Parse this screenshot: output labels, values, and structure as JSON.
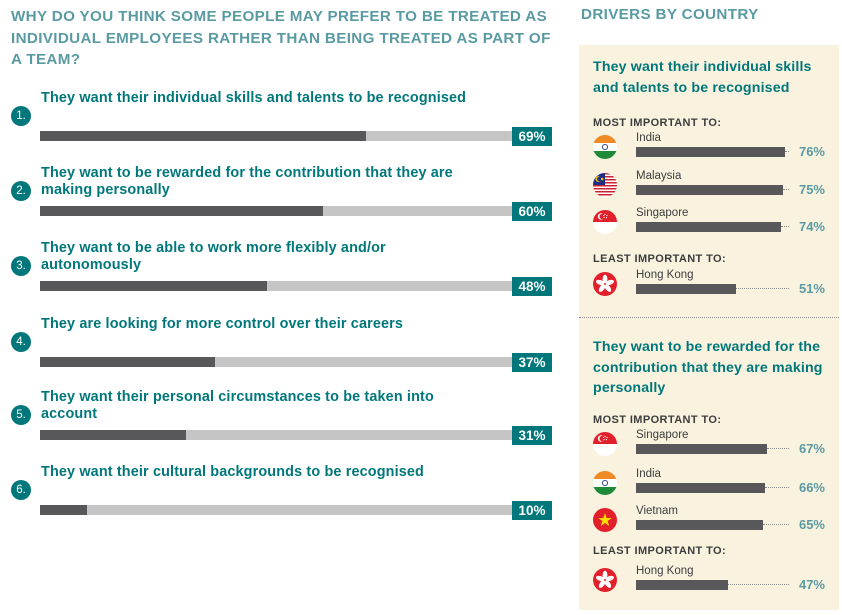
{
  "left": {
    "title": "WHY DO YOU THINK SOME PEOPLE MAY PREFER TO BE TREATED AS INDIVIDUAL EMPLOYEES RATHER THAN BEING TREATED AS PART OF A TEAM?",
    "items": [
      {
        "num": "1.",
        "label": "They want their individual skills and talents to be recognised",
        "value": 69,
        "value_label": "69%"
      },
      {
        "num": "2.",
        "label": "They want to be rewarded for the contribution that they are making personally",
        "value": 60,
        "value_label": "60%"
      },
      {
        "num": "3.",
        "label": "They want to be able to work more flexibly and/or autonomously",
        "value": 48,
        "value_label": "48%"
      },
      {
        "num": "4.",
        "label": "They are looking for more control over their careers",
        "value": 37,
        "value_label": "37%"
      },
      {
        "num": "5.",
        "label": "They want their personal circumstances to be taken into account",
        "value": 31,
        "value_label": "31%"
      },
      {
        "num": "6.",
        "label": "They want their cultural backgrounds to be recognised",
        "value": 10,
        "value_label": "10%"
      }
    ]
  },
  "right": {
    "title": "DRIVERS BY COUNTRY",
    "sections": [
      {
        "title": "They want their individual skills and talents to be recognised",
        "most_label": "MOST IMPORTANT TO:",
        "most": [
          {
            "country": "India",
            "flag": "india-flag-icon",
            "value": 76,
            "value_label": "76%"
          },
          {
            "country": "Malaysia",
            "flag": "malaysia-flag-icon",
            "value": 75,
            "value_label": "75%"
          },
          {
            "country": "Singapore",
            "flag": "singapore-flag-icon",
            "value": 74,
            "value_label": "74%"
          }
        ],
        "least_label": "LEAST IMPORTANT TO:",
        "least": [
          {
            "country": "Hong Kong",
            "flag": "hong-kong-flag-icon",
            "value": 51,
            "value_label": "51%"
          }
        ]
      },
      {
        "title": "They want to be rewarded for the contribution that they are making personally",
        "most_label": "MOST IMPORTANT TO:",
        "most": [
          {
            "country": "Singapore",
            "flag": "singapore-flag-icon",
            "value": 67,
            "value_label": "67%"
          },
          {
            "country": "India",
            "flag": "india-flag-icon",
            "value": 66,
            "value_label": "66%"
          },
          {
            "country": "Vietnam",
            "flag": "vietnam-flag-icon",
            "value": 65,
            "value_label": "65%"
          }
        ],
        "least_label": "LEAST IMPORTANT TO:",
        "least": [
          {
            "country": "Hong Kong",
            "flag": "hong-kong-flag-icon",
            "value": 47,
            "value_label": "47%"
          }
        ]
      }
    ]
  },
  "colors": {
    "teal": "#00777a",
    "light_teal": "#5a9aa2",
    "bar_dark": "#58585a",
    "bar_track": "#c5c5c6",
    "panel_bg": "#f8f2df"
  },
  "chart_data": [
    {
      "type": "bar",
      "orientation": "horizontal",
      "title": "WHY DO YOU THINK SOME PEOPLE MAY PREFER TO BE TREATED AS INDIVIDUAL EMPLOYEES RATHER THAN BEING TREATED AS PART OF A TEAM?",
      "categories": [
        "They want their individual skills and talents to be recognised",
        "They want to be rewarded for the contribution that they are making personally",
        "They want to be able to work more flexibly and/or autonomously",
        "They are looking for more control over their careers",
        "They want their personal circumstances to be taken into account",
        "They want their cultural backgrounds to be recognised"
      ],
      "values": [
        69,
        60,
        48,
        37,
        31,
        10
      ],
      "xlim": [
        0,
        100
      ],
      "unit": "%"
    },
    {
      "type": "bar",
      "orientation": "horizontal",
      "title": "They want their individual skills and talents to be recognised",
      "categories": [
        "India",
        "Malaysia",
        "Singapore",
        "Hong Kong"
      ],
      "values": [
        76,
        75,
        74,
        51
      ],
      "unit": "%"
    },
    {
      "type": "bar",
      "orientation": "horizontal",
      "title": "They want to be rewarded for the contribution that they are making personally",
      "categories": [
        "Singapore",
        "India",
        "Vietnam",
        "Hong Kong"
      ],
      "values": [
        67,
        66,
        65,
        47
      ],
      "unit": "%"
    }
  ]
}
